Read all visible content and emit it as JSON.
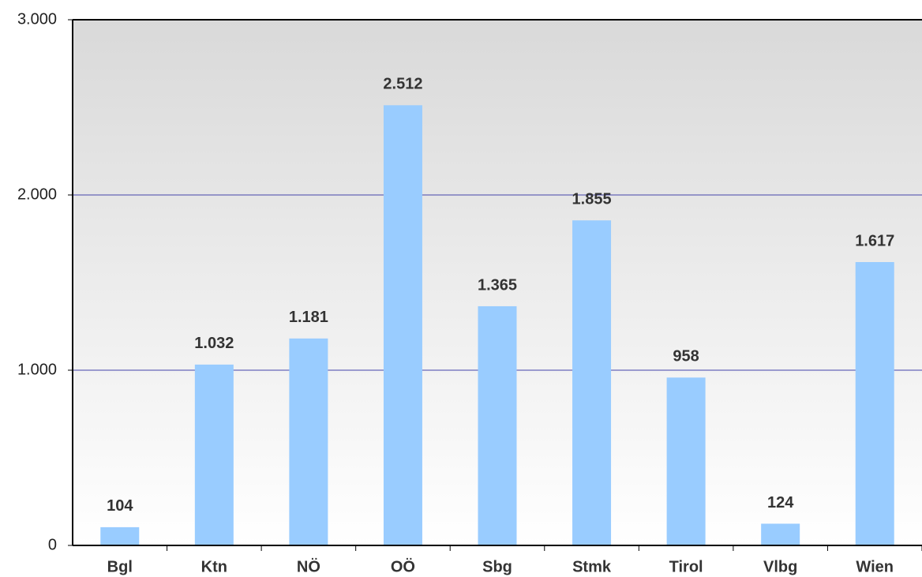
{
  "chart_data": {
    "type": "bar",
    "categories": [
      "Bgl",
      "Ktn",
      "NÖ",
      "OÖ",
      "Sbg",
      "Stmk",
      "Tirol",
      "Vlbg",
      "Wien"
    ],
    "values": [
      104,
      1032,
      1181,
      2512,
      1365,
      1855,
      958,
      124,
      1617
    ],
    "value_labels": [
      "104",
      "1.032",
      "1.181",
      "2.512",
      "1.365",
      "1.855",
      "958",
      "124",
      "1.617"
    ],
    "color": "#99ccff",
    "ylim": [
      0,
      3000
    ],
    "yticks": [
      0,
      {
        "value": 1000,
        "label": "1.000"
      },
      {
        "value": 2000,
        "label": "2.000"
      },
      {
        "value": 3000,
        "label": "3.000"
      }
    ],
    "grid": true
  }
}
